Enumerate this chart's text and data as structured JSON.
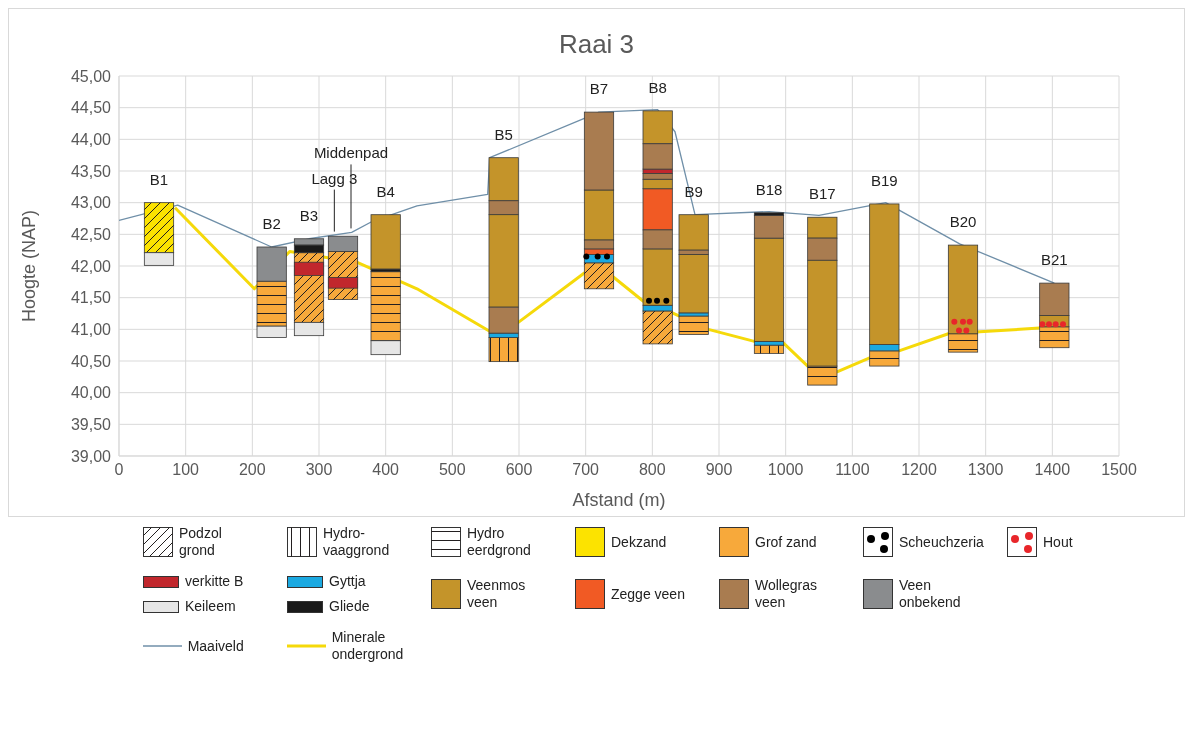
{
  "chart_data": {
    "type": "bar",
    "title": "Raai 3",
    "xlabel": "Afstand (m)",
    "ylabel": "Hoogte (NAP)",
    "xlim": [
      0,
      1500
    ],
    "xticks": [
      0,
      100,
      200,
      300,
      400,
      500,
      600,
      700,
      800,
      900,
      1000,
      1100,
      1200,
      1300,
      1400,
      1500
    ],
    "ylim": [
      39,
      45
    ],
    "yticks": [
      {
        "value": 39,
        "label": "39,00"
      },
      {
        "value": 39.5,
        "label": "39,50"
      },
      {
        "value": 40,
        "label": "40,00"
      },
      {
        "value": 40.5,
        "label": "40,50"
      },
      {
        "value": 41,
        "label": "41,00"
      },
      {
        "value": 41.5,
        "label": "41,50"
      },
      {
        "value": 42,
        "label": "42,00"
      },
      {
        "value": 42.5,
        "label": "42,50"
      },
      {
        "value": 43,
        "label": "43,00"
      },
      {
        "value": 43.5,
        "label": "43,50"
      },
      {
        "value": 44,
        "label": "44,00"
      },
      {
        "value": 44.5,
        "label": "44,50"
      },
      {
        "value": 45,
        "label": "45,00"
      }
    ],
    "grid": true,
    "legend": "bottom",
    "series": [
      {
        "name": "Podzol grond",
        "color": "#231f20",
        "colors": [
          "#fce300",
          "#f7a93b",
          "#f7a93b",
          "#f7a93b",
          "#f7a93b"
        ],
        "x": [
          60,
          285,
          336,
          720,
          808
        ],
        "base": [
          42.21,
          41.11,
          41.47,
          41.64,
          40.77
        ],
        "values": [
          0.79,
          1.1,
          0.76,
          0.41,
          0.52
        ]
      },
      {
        "name": "Hydro-vaaggrond",
        "color": "#231f20",
        "colors": [
          "#f7a93b",
          "#f7a93b"
        ],
        "x": [
          577,
          975
        ],
        "base": [
          40.49,
          40.62
        ],
        "values": [
          0.38,
          0.13
        ]
      },
      {
        "name": "Hydro eerdgrond",
        "color": "#231f20",
        "colors": [
          "#f7a93b",
          "#f7a93b",
          "#f7a93b",
          "#f7a93b",
          "#f7a93b",
          "#f7a93b",
          "#f7a93b"
        ],
        "x": [
          229,
          400,
          862,
          1055,
          1148,
          1266,
          1403
        ],
        "base": [
          41.05,
          40.82,
          40.92,
          40.12,
          40.42,
          40.64,
          40.71
        ],
        "values": [
          0.71,
          1.09,
          0.29,
          0.3,
          0.24,
          0.29,
          0.33
        ]
      },
      {
        "name": "Dekzand",
        "color": "#fce300"
      },
      {
        "name": "Grof zand",
        "color": "#f7a93b"
      },
      {
        "name": "Scheuchzeria",
        "type": "scatter",
        "color": "#000000",
        "marker": "circle",
        "x": [
          701,
          718,
          732,
          795,
          807,
          821
        ],
        "values": [
          42.15,
          42.15,
          42.15,
          41.45,
          41.45,
          41.45
        ]
      },
      {
        "name": "Hout",
        "type": "scatter",
        "color": "#e8262a",
        "marker": "circle",
        "x": [
          1253,
          1260,
          1266,
          1271,
          1276,
          1385,
          1395,
          1405,
          1416
        ],
        "values": [
          41.12,
          40.98,
          41.12,
          40.98,
          41.12,
          41.08,
          41.08,
          41.08,
          41.08
        ]
      },
      {
        "name": "verkitte B",
        "color": "#c1272d",
        "x": [
          285,
          336,
          808
        ],
        "base": [
          41.85,
          41.65,
          43.46
        ],
        "values": [
          0.21,
          0.17,
          0.07
        ]
      },
      {
        "name": "Gyttja",
        "color": "#1ba9e1",
        "x": [
          577,
          720,
          808,
          862,
          975,
          1148
        ],
        "base": [
          40.87,
          42.05,
          41.29,
          41.21,
          40.75,
          40.66
        ],
        "values": [
          0.07,
          0.13,
          0.09,
          0.05,
          0.06,
          0.1
        ]
      },
      {
        "name": "Veenmos veen",
        "color": "#c4942a",
        "x": [
          400,
          577,
          720,
          808,
          862,
          975,
          1055,
          1148,
          1266,
          1403
        ],
        "base": [
          41.95,
          43.03,
          42.41,
          43.93,
          42.25,
          40.81,
          42.44,
          40.76,
          40.93,
          41.04
        ],
        "values": [
          0.86,
          0.68,
          0.79,
          0.52,
          0.56,
          1.63,
          0.33,
          2.22,
          1.4,
          0.18
        ]
      },
      {
        "name": "Zegge veen",
        "color": "#f15a24",
        "x": [
          720,
          808
        ],
        "base": [
          42.18,
          42.57
        ],
        "values": [
          0.09,
          0.65
        ]
      },
      {
        "name": "Wollegras veen",
        "color": "#a97c50",
        "x": [
          577,
          720,
          808,
          862,
          975,
          1055,
          1403
        ],
        "base": [
          42.81,
          43.2,
          43.53,
          42.18,
          42.44,
          42.09,
          41.22
        ],
        "values": [
          0.22,
          1.23,
          0.4,
          0.07,
          0.36,
          0.35,
          0.51
        ]
      },
      {
        "name": "Veen onbekend",
        "color": "#8a8c8e",
        "x": [
          229,
          285,
          336
        ],
        "base": [
          41.76,
          42.33,
          42.23
        ],
        "values": [
          0.54,
          0.1,
          0.24
        ]
      },
      {
        "name": "Keileem",
        "color": "#e6e6e6",
        "x": [
          60,
          229,
          285,
          400
        ],
        "base": [
          42.01,
          40.87,
          40.9,
          40.6
        ],
        "values": [
          0.2,
          0.18,
          0.21,
          0.22
        ]
      },
      {
        "name": "Gliede",
        "color": "#1a1a1a",
        "x": [
          285,
          400,
          975
        ],
        "base": [
          42.21,
          41.91,
          42.8
        ],
        "values": [
          0.12,
          0.04,
          0.04
        ]
      },
      {
        "name": "Maaiveld",
        "type": "line",
        "color": "#6f8fa8",
        "x": [
          0,
          88,
          229,
          285,
          349,
          381,
          447,
          553,
          556,
          698,
          720,
          808,
          834,
          864,
          975,
          1050,
          1150,
          1261,
          1403
        ],
        "values": [
          42.72,
          42.96,
          42.3,
          42.43,
          42.53,
          42.71,
          42.95,
          43.13,
          43.71,
          44.33,
          44.43,
          44.47,
          44.12,
          42.81,
          42.86,
          42.8,
          43.0,
          42.35,
          41.73
        ]
      },
      {
        "name": "Minerale ondergrond",
        "type": "line",
        "color": "#f5d90a",
        "x": [
          84,
          203,
          256,
          359,
          447,
          556,
          599,
          698,
          741,
          787,
          830,
          884,
          953,
          996,
          1033,
          1077,
          1126,
          1170,
          1244,
          1291,
          1381
        ],
        "values": [
          42.92,
          41.64,
          42.23,
          42.05,
          41.64,
          40.97,
          41.11,
          41.89,
          41.83,
          41.44,
          41.26,
          41.0,
          40.81,
          40.79,
          40.42,
          40.33,
          40.55,
          40.66,
          40.93,
          40.96,
          41.02
        ]
      },
      {
        "color": "#c4942a",
        "x": [
          577,
          808,
          862,
          1055
        ],
        "base": [
          41.35,
          43.22,
          41.26,
          40.42
        ],
        "values": [
          1.46,
          0.15,
          0.92,
          1.67
        ]
      },
      {
        "color": "#c4942a",
        "x": [
          808
        ],
        "base": [
          41.38
        ],
        "values": [
          0.89
        ]
      },
      {
        "color": "#a97c50",
        "x": [
          577,
          720,
          808
        ],
        "base": [
          40.94,
          42.27,
          43.37
        ],
        "values": [
          0.41,
          0.14,
          0.09
        ]
      },
      {
        "color": "#a97c50",
        "x": [
          808
        ],
        "base": [
          42.27
        ],
        "values": [
          0.3
        ]
      }
    ],
    "annotations": [
      {
        "text": "B1",
        "x": 60,
        "y": 43.0
      },
      {
        "text": "B2",
        "x": 229,
        "y": 42.3
      },
      {
        "text": "B3",
        "x": 285,
        "y": 42.43
      },
      {
        "text": "Lagg 3",
        "x": 323,
        "y": 42.48
      },
      {
        "text": "Middenpad",
        "x": 348,
        "y": 42.53
      },
      {
        "text": "B4",
        "x": 400,
        "y": 42.81
      },
      {
        "text": "B5",
        "x": 577,
        "y": 43.71
      },
      {
        "text": "B7",
        "x": 720,
        "y": 44.43
      },
      {
        "text": "B8",
        "x": 808,
        "y": 44.45
      },
      {
        "text": "B9",
        "x": 862,
        "y": 42.81
      },
      {
        "text": "B18",
        "x": 975,
        "y": 42.84
      },
      {
        "text": "B17",
        "x": 1055,
        "y": 42.77
      },
      {
        "text": "B19",
        "x": 1148,
        "y": 42.98
      },
      {
        "text": "B20",
        "x": 1266,
        "y": 42.33
      },
      {
        "text": "B21",
        "x": 1403,
        "y": 41.73
      }
    ]
  }
}
